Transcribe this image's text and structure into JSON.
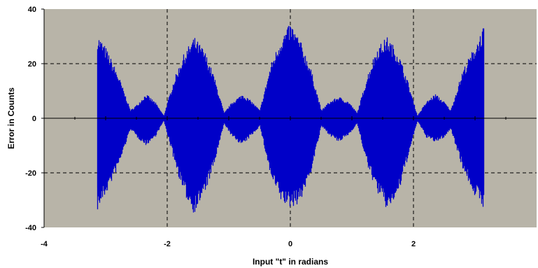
{
  "chart_data": {
    "type": "area",
    "title": "",
    "xlabel": "Input \"t\" in radians",
    "ylabel": "Error in Counts",
    "xlim": [
      -4,
      4
    ],
    "ylim": [
      -40,
      40
    ],
    "x_ticks": [
      -4,
      -2,
      0,
      2
    ],
    "y_ticks": [
      -40,
      -20,
      0,
      20,
      40
    ],
    "x_tick_labels": [
      "-4",
      "-2",
      "0",
      "2"
    ],
    "y_tick_labels": [
      "-40",
      "-20",
      "0",
      "20",
      "40"
    ],
    "grid": "dashed at x=-2,0,2 and y=-20,20",
    "colors": {
      "plot_bg": "#b8b4a8",
      "series": "#0000c8",
      "grid": "#000000"
    },
    "series": [
      {
        "name": "",
        "x_range": [
          -3.14,
          3.14
        ],
        "envelope": [
          {
            "x": -3.14,
            "max": 31,
            "min": -34
          },
          {
            "x": -3.0,
            "max": 26,
            "min": -28
          },
          {
            "x": -2.8,
            "max": 16,
            "min": -18
          },
          {
            "x": -2.6,
            "max": 3,
            "min": -4
          },
          {
            "x": -2.5,
            "max": 5,
            "min": -7
          },
          {
            "x": -2.35,
            "max": 9,
            "min": -10
          },
          {
            "x": -2.2,
            "max": 6,
            "min": -7
          },
          {
            "x": -2.06,
            "max": 1,
            "min": -1
          },
          {
            "x": -1.9,
            "max": 14,
            "min": -15
          },
          {
            "x": -1.75,
            "max": 23,
            "min": -27
          },
          {
            "x": -1.57,
            "max": 30,
            "min": -35
          },
          {
            "x": -1.4,
            "max": 25,
            "min": -28
          },
          {
            "x": -1.25,
            "max": 16,
            "min": -18
          },
          {
            "x": -1.08,
            "max": 2,
            "min": -2
          },
          {
            "x": -0.95,
            "max": 6,
            "min": -7
          },
          {
            "x": -0.78,
            "max": 9,
            "min": -10
          },
          {
            "x": -0.62,
            "max": 6,
            "min": -6
          },
          {
            "x": -0.5,
            "max": 3,
            "min": -3
          },
          {
            "x": -0.32,
            "max": 20,
            "min": -22
          },
          {
            "x": -0.15,
            "max": 30,
            "min": -31
          },
          {
            "x": 0.0,
            "max": 35,
            "min": -33
          },
          {
            "x": 0.15,
            "max": 29,
            "min": -31
          },
          {
            "x": 0.32,
            "max": 19,
            "min": -21
          },
          {
            "x": 0.5,
            "max": 3,
            "min": -3
          },
          {
            "x": 0.62,
            "max": 6,
            "min": -6
          },
          {
            "x": 0.78,
            "max": 8,
            "min": -9
          },
          {
            "x": 0.95,
            "max": 6,
            "min": -6
          },
          {
            "x": 1.08,
            "max": 2,
            "min": -2
          },
          {
            "x": 1.25,
            "max": 16,
            "min": -18
          },
          {
            "x": 1.4,
            "max": 26,
            "min": -27
          },
          {
            "x": 1.57,
            "max": 30,
            "min": -34
          },
          {
            "x": 1.75,
            "max": 24,
            "min": -28
          },
          {
            "x": 1.9,
            "max": 14,
            "min": -15
          },
          {
            "x": 2.06,
            "max": 1,
            "min": -1
          },
          {
            "x": 2.2,
            "max": 6,
            "min": -7
          },
          {
            "x": 2.35,
            "max": 9,
            "min": -9
          },
          {
            "x": 2.5,
            "max": 6,
            "min": -7
          },
          {
            "x": 2.6,
            "max": 3,
            "min": -4
          },
          {
            "x": 2.8,
            "max": 18,
            "min": -19
          },
          {
            "x": 3.0,
            "max": 27,
            "min": -29
          },
          {
            "x": 3.14,
            "max": 34,
            "min": -33
          }
        ]
      }
    ]
  }
}
